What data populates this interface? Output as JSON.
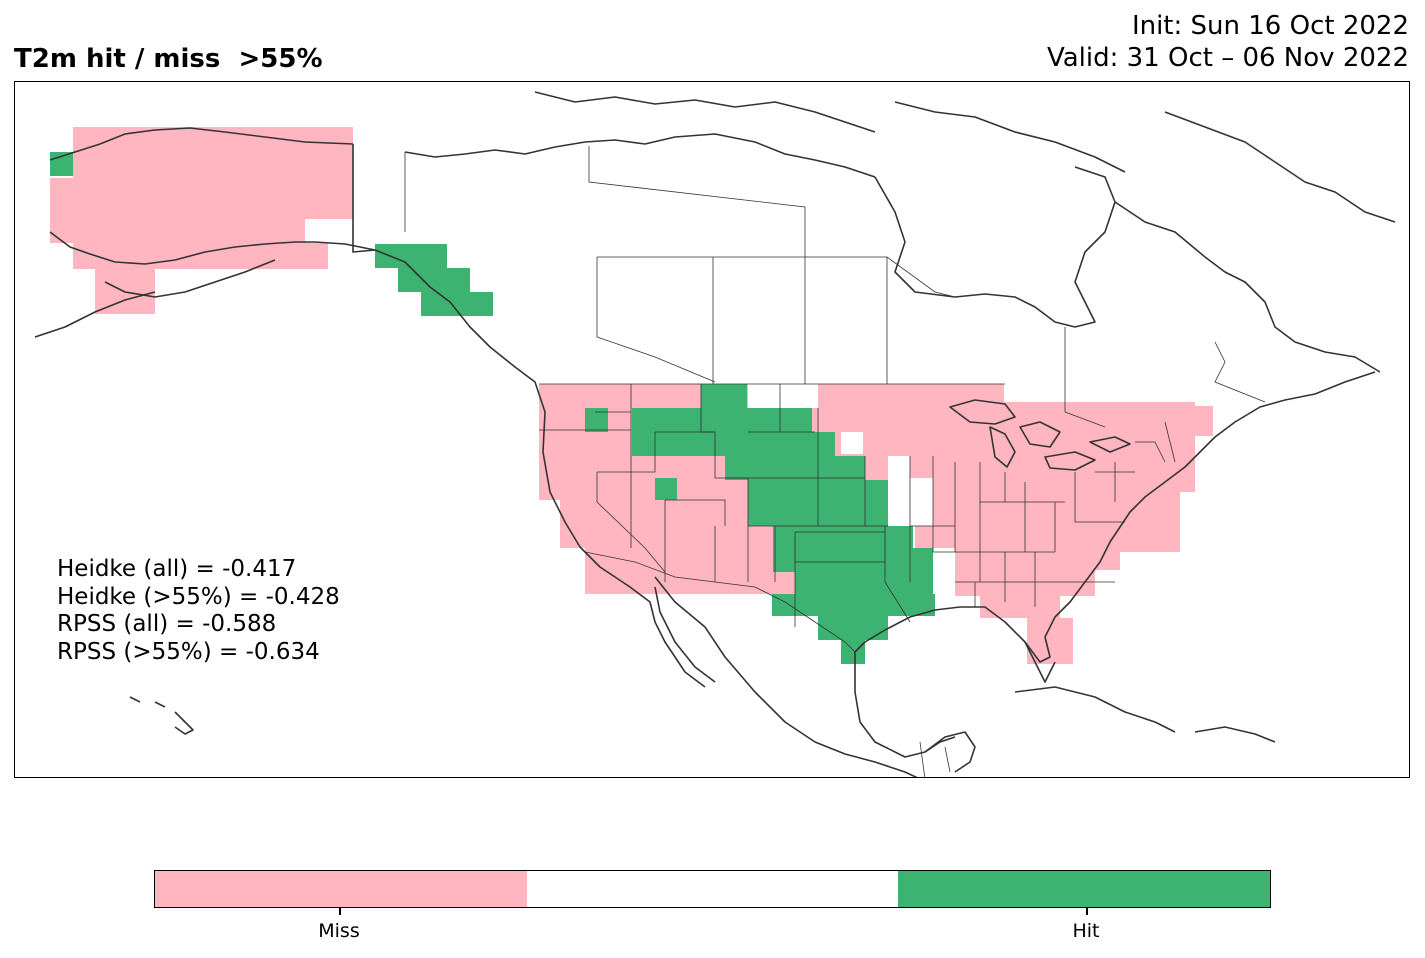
{
  "title": "T2m hit / miss  >55%",
  "init_text": "Init: Sun 16 Oct 2022",
  "valid_text": "Valid: 31 Oct – 06 Nov 2022",
  "scores": {
    "heidke_all": "Heidke (all) = -0.417",
    "heidke_55": "Heidke (>55%) = -0.428",
    "rpss_all": "RPSS (all) = -0.588",
    "rpss_55": "RPSS (>55%) = -0.634"
  },
  "colors": {
    "miss": "#ffb6c1",
    "neutral": "#ffffff",
    "hit": "#3cb371",
    "coast": "#333333"
  },
  "colorbar": {
    "miss_label": "Miss",
    "hit_label": "Hit"
  }
}
